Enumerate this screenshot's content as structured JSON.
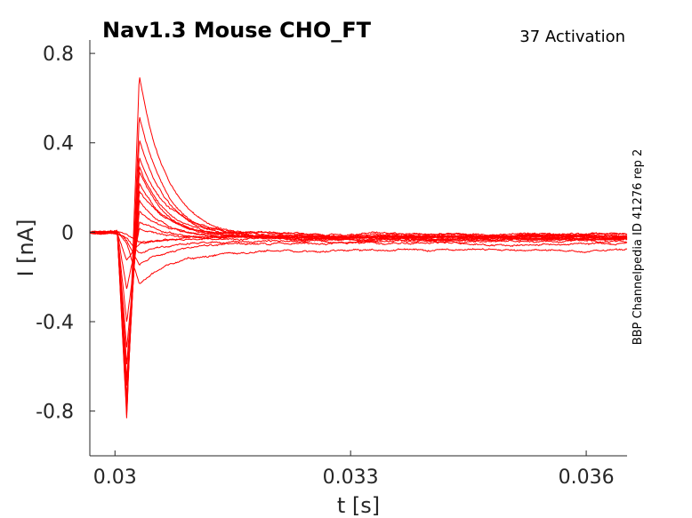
{
  "chart_data": {
    "type": "line",
    "title": "Nav1.3  Mouse  CHO_FT",
    "subtitle": "37  Activation",
    "side_label": "BBP Channelpedia ID 41276 rep 2",
    "xlabel": "t [s]",
    "ylabel": "I [nA]",
    "xlim": [
      0.02968,
      0.03652
    ],
    "ylim": [
      -1.0,
      0.86
    ],
    "xticks": [
      0.03,
      0.033,
      0.036
    ],
    "xtick_labels": [
      "0.03",
      "0.033",
      "0.036"
    ],
    "yticks": [
      0.8,
      0.4,
      0.0,
      -0.4,
      -0.8
    ],
    "ytick_labels": [
      "0.8",
      "0.4",
      "0",
      "-0.4",
      "-0.8"
    ],
    "grid": false,
    "color": "#ff0000",
    "stim_onset": 0.03003,
    "series": [
      {
        "peak_neg": -0.01,
        "peak_pos": -0.04,
        "steady": -0.02
      },
      {
        "peak_neg": -0.02,
        "peak_pos": -0.09,
        "steady": -0.04
      },
      {
        "peak_neg": -0.03,
        "peak_pos": -0.14,
        "steady": -0.05
      },
      {
        "peak_neg": -0.05,
        "peak_pos": -0.24,
        "steady": -0.08
      },
      {
        "peak_neg": -0.12,
        "peak_pos": -0.05,
        "steady": -0.03
      },
      {
        "peak_neg": -0.25,
        "peak_pos": 0.02,
        "steady": -0.02
      },
      {
        "peak_neg": -0.4,
        "peak_pos": 0.05,
        "steady": -0.03
      },
      {
        "peak_neg": -0.52,
        "peak_pos": 0.1,
        "steady": -0.02
      },
      {
        "peak_neg": -0.6,
        "peak_pos": 0.14,
        "steady": -0.03
      },
      {
        "peak_neg": -0.66,
        "peak_pos": 0.18,
        "steady": -0.01
      },
      {
        "peak_neg": -0.7,
        "peak_pos": 0.22,
        "steady": -0.02
      },
      {
        "peak_neg": -0.74,
        "peak_pos": 0.27,
        "steady": -0.03
      },
      {
        "peak_neg": -0.76,
        "peak_pos": 0.3,
        "steady": -0.02
      },
      {
        "peak_neg": -0.78,
        "peak_pos": 0.34,
        "steady": -0.01
      },
      {
        "peak_neg": -0.8,
        "peak_pos": 0.42,
        "steady": -0.02
      },
      {
        "peak_neg": -0.82,
        "peak_pos": 0.53,
        "steady": -0.03
      },
      {
        "peak_neg": -0.84,
        "peak_pos": 0.7,
        "steady": -0.02
      }
    ]
  }
}
